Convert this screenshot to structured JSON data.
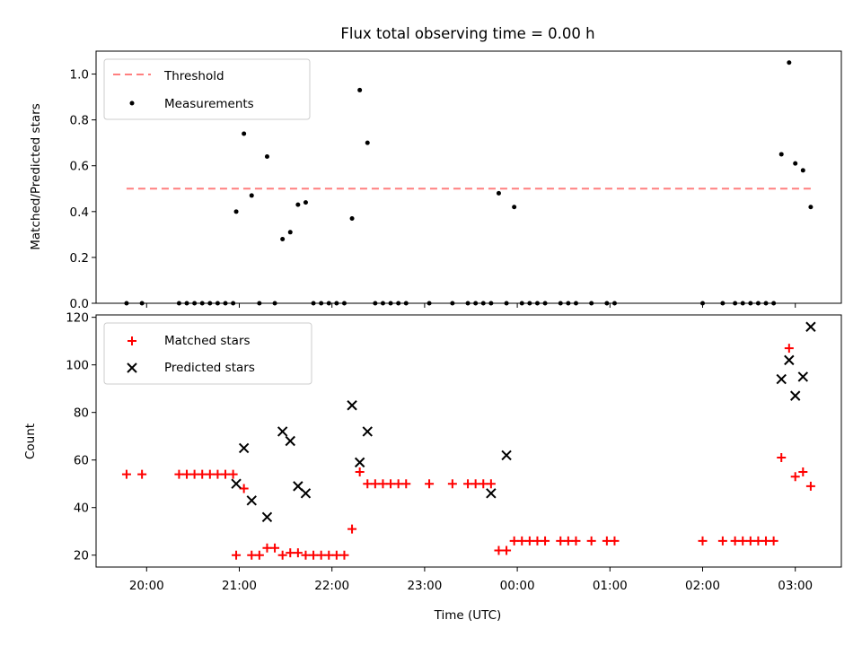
{
  "title": "Flux total observing time = 0.00 h",
  "xlabel": "Time (UTC)",
  "chart_data": [
    {
      "type": "scatter",
      "ylabel": "Matched/Predicted stars",
      "ylim": [
        0,
        1.1
      ],
      "yticks": [
        "0.0",
        "0.2",
        "0.4",
        "0.6",
        "0.8",
        "1.0"
      ],
      "legend": "top-left",
      "threshold": {
        "name": "Threshold",
        "value": 0.5,
        "x_start": "19:47",
        "x_end": "03:10",
        "color": "#ff7f7f"
      },
      "series": [
        {
          "name": "Measurements",
          "color": "#000000",
          "x": [
            "19:47",
            "19:57",
            "20:21",
            "20:26",
            "20:31",
            "20:36",
            "20:41",
            "20:46",
            "20:51",
            "20:56",
            "20:58",
            "21:03",
            "21:08",
            "21:13",
            "21:18",
            "21:23",
            "21:28",
            "21:33",
            "21:38",
            "21:43",
            "21:48",
            "21:53",
            "21:58",
            "22:03",
            "22:08",
            "22:13",
            "22:18",
            "22:23",
            "22:28",
            "22:33",
            "22:38",
            "22:43",
            "22:48",
            "23:03",
            "23:18",
            "23:28",
            "23:33",
            "23:38",
            "23:43",
            "23:48",
            "23:53",
            "23:58",
            "00:03",
            "00:08",
            "00:13",
            "00:18",
            "00:28",
            "00:33",
            "00:38",
            "00:48",
            "00:58",
            "01:03",
            "02:00",
            "02:13",
            "02:21",
            "02:26",
            "02:31",
            "02:36",
            "02:41",
            "02:46",
            "02:51",
            "02:56",
            "03:00",
            "03:05",
            "03:10"
          ],
          "y": [
            0,
            0,
            0,
            0,
            0,
            0,
            0,
            0,
            0,
            0,
            0.4,
            0.74,
            0.47,
            0,
            0.64,
            0,
            0.28,
            0.31,
            0.43,
            0.44,
            0,
            0,
            0,
            0,
            0,
            0.37,
            0.93,
            0.7,
            0,
            0,
            0,
            0,
            0,
            0,
            0,
            0,
            0,
            0,
            0,
            0.48,
            0,
            0.42,
            0,
            0,
            0,
            0,
            0,
            0,
            0,
            0,
            0,
            0,
            0,
            0,
            0,
            0,
            0,
            0,
            0,
            0,
            0.65,
            1.05,
            0.61,
            0.58,
            0.42
          ]
        }
      ]
    },
    {
      "type": "scatter",
      "ylabel": "Count",
      "ylim": [
        15,
        121
      ],
      "yticks": [
        "20",
        "40",
        "60",
        "80",
        "100",
        "120"
      ],
      "xticks": [
        "20:00",
        "21:00",
        "22:00",
        "23:00",
        "00:00",
        "01:00",
        "02:00",
        "03:00"
      ],
      "legend": "top-left",
      "series": [
        {
          "name": "Matched stars",
          "marker": "+",
          "color": "#ff0000",
          "x": [
            "19:47",
            "19:57",
            "20:21",
            "20:26",
            "20:31",
            "20:36",
            "20:41",
            "20:46",
            "20:51",
            "20:56",
            "20:58",
            "21:03",
            "21:08",
            "21:13",
            "21:18",
            "21:23",
            "21:28",
            "21:33",
            "21:38",
            "21:43",
            "21:48",
            "21:53",
            "21:58",
            "22:03",
            "22:08",
            "22:13",
            "22:18",
            "22:23",
            "22:28",
            "22:33",
            "22:38",
            "22:43",
            "22:48",
            "23:03",
            "23:18",
            "23:28",
            "23:33",
            "23:38",
            "23:43",
            "23:48",
            "23:53",
            "23:58",
            "00:03",
            "00:08",
            "00:13",
            "00:18",
            "00:28",
            "00:33",
            "00:38",
            "00:48",
            "00:58",
            "01:03",
            "02:00",
            "02:13",
            "02:21",
            "02:26",
            "02:31",
            "02:36",
            "02:41",
            "02:46",
            "02:51",
            "02:56",
            "03:00",
            "03:05",
            "03:10"
          ],
          "y": [
            54,
            54,
            54,
            54,
            54,
            54,
            54,
            54,
            54,
            54,
            20,
            48,
            20,
            20,
            23,
            23,
            20,
            21,
            21,
            20,
            20,
            20,
            20,
            20,
            20,
            31,
            55,
            50,
            50,
            50,
            50,
            50,
            50,
            50,
            50,
            50,
            50,
            50,
            50,
            22,
            22,
            26,
            26,
            26,
            26,
            26,
            26,
            26,
            26,
            26,
            26,
            26,
            26,
            26,
            26,
            26,
            26,
            26,
            26,
            26,
            61,
            107,
            53,
            55,
            49
          ]
        },
        {
          "name": "Predicted stars",
          "marker": "x",
          "color": "#000000",
          "x": [
            "20:58",
            "21:03",
            "21:08",
            "21:18",
            "21:28",
            "21:33",
            "21:38",
            "21:43",
            "22:13",
            "22:18",
            "22:23",
            "23:43",
            "23:53",
            "02:51",
            "02:56",
            "03:00",
            "03:05",
            "03:10"
          ],
          "y": [
            50,
            65,
            43,
            36,
            72,
            68,
            49,
            46,
            83,
            59,
            72,
            46,
            62,
            94,
            102,
            87,
            95,
            116
          ]
        }
      ]
    }
  ]
}
